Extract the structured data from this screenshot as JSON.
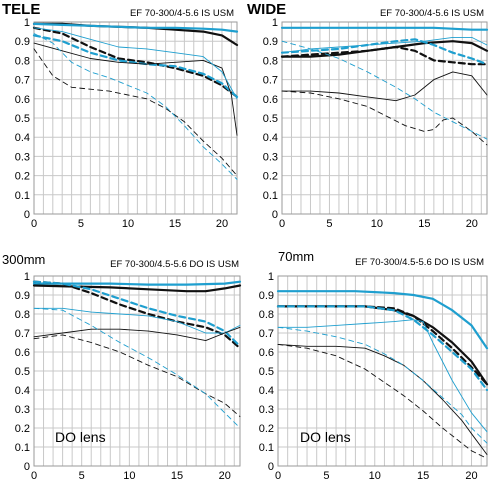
{
  "colors": {
    "dark": "#111111",
    "blue": "#1f9fcf",
    "grid": "#c8c8c8",
    "frame": "#9a9a9a"
  },
  "chart_data": [
    {
      "type": "line",
      "title": "TELE",
      "subtitle": "EF 70-300/4-5.6 IS USM",
      "note": "",
      "xlim": [
        0,
        21.6
      ],
      "ylim": [
        0,
        1
      ],
      "xticks": [
        "0",
        "5",
        "10",
        "15",
        "20"
      ],
      "yticks": [
        "0",
        "0.1",
        "0.2",
        "0.3",
        "0.4",
        "0.5",
        "0.6",
        "0.7",
        "0.8",
        "0.9",
        "1"
      ],
      "grid": true,
      "series": [
        {
          "color": "dark",
          "width": "thick",
          "dash": "solid",
          "x": [
            0,
            3,
            6,
            9,
            12,
            15,
            18,
            20,
            21.6
          ],
          "y": [
            0.99,
            0.99,
            0.98,
            0.975,
            0.97,
            0.96,
            0.95,
            0.93,
            0.88
          ]
        },
        {
          "color": "blue",
          "width": "thick",
          "dash": "solid",
          "x": [
            0,
            3,
            6,
            9,
            12,
            15,
            18,
            20,
            21.6
          ],
          "y": [
            0.99,
            0.985,
            0.98,
            0.975,
            0.97,
            0.97,
            0.965,
            0.96,
            0.95
          ]
        },
        {
          "color": "dark",
          "width": "thick",
          "dash": "dashed",
          "x": [
            0,
            3,
            6,
            9,
            12,
            15,
            18,
            20,
            21.6
          ],
          "y": [
            0.97,
            0.94,
            0.87,
            0.81,
            0.79,
            0.76,
            0.72,
            0.67,
            0.61
          ]
        },
        {
          "color": "blue",
          "width": "thick",
          "dash": "dashed",
          "x": [
            0,
            3,
            6,
            9,
            12,
            15,
            18,
            20,
            21.6
          ],
          "y": [
            0.93,
            0.9,
            0.84,
            0.8,
            0.78,
            0.77,
            0.73,
            0.68,
            0.61
          ]
        },
        {
          "color": "dark",
          "width": "thin",
          "dash": "solid",
          "x": [
            0,
            3,
            6,
            9,
            12,
            15,
            18,
            20,
            21,
            21.6
          ],
          "y": [
            0.89,
            0.85,
            0.81,
            0.79,
            0.78,
            0.79,
            0.8,
            0.76,
            0.62,
            0.41
          ]
        },
        {
          "color": "blue",
          "width": "thin",
          "dash": "solid",
          "x": [
            0,
            3,
            6,
            9,
            12,
            15,
            18,
            20,
            21.6
          ],
          "y": [
            0.97,
            0.95,
            0.91,
            0.87,
            0.86,
            0.84,
            0.82,
            0.74,
            0.6
          ]
        },
        {
          "color": "dark",
          "width": "thin",
          "dash": "dashed",
          "x": [
            0,
            2,
            4,
            6,
            8,
            10,
            12,
            14,
            16,
            18,
            20,
            21.6
          ],
          "y": [
            0.86,
            0.72,
            0.66,
            0.65,
            0.64,
            0.62,
            0.6,
            0.55,
            0.48,
            0.38,
            0.29,
            0.2
          ]
        },
        {
          "color": "blue",
          "width": "thin",
          "dash": "dashed",
          "x": [
            0,
            2,
            4,
            6,
            8,
            10,
            12,
            14,
            16,
            18,
            20,
            21.6
          ],
          "y": [
            0.94,
            0.89,
            0.79,
            0.74,
            0.71,
            0.67,
            0.63,
            0.56,
            0.46,
            0.35,
            0.26,
            0.18
          ]
        }
      ]
    },
    {
      "type": "line",
      "title": "WIDE",
      "subtitle": "EF 70-300/4-5.6 IS USM",
      "note": "",
      "xlim": [
        0,
        21.6
      ],
      "ylim": [
        0,
        1
      ],
      "xticks": [
        "0",
        "5",
        "10",
        "15",
        "20"
      ],
      "yticks": [
        "0",
        "0.1",
        "0.2",
        "0.3",
        "0.4",
        "0.5",
        "0.6",
        "0.7",
        "0.8",
        "0.9",
        "1"
      ],
      "grid": true,
      "series": [
        {
          "color": "blue",
          "width": "thick",
          "dash": "solid",
          "x": [
            0,
            4,
            8,
            12,
            16,
            20,
            21.6
          ],
          "y": [
            0.97,
            0.97,
            0.97,
            0.97,
            0.97,
            0.96,
            0.96
          ]
        },
        {
          "color": "dark",
          "width": "thick",
          "dash": "solid",
          "x": [
            0,
            3,
            6,
            9,
            12,
            15,
            18,
            20,
            21.6
          ],
          "y": [
            0.82,
            0.82,
            0.83,
            0.85,
            0.87,
            0.89,
            0.9,
            0.89,
            0.85
          ]
        },
        {
          "color": "dark",
          "width": "thick",
          "dash": "dashed",
          "x": [
            0,
            3,
            6,
            9,
            12,
            14,
            16,
            18,
            20,
            21.6
          ],
          "y": [
            0.82,
            0.83,
            0.84,
            0.85,
            0.87,
            0.85,
            0.8,
            0.79,
            0.78,
            0.78
          ]
        },
        {
          "color": "blue",
          "width": "thick",
          "dash": "dashed",
          "x": [
            0,
            3,
            6,
            9,
            12,
            14,
            16,
            18,
            20,
            21.6
          ],
          "y": [
            0.84,
            0.85,
            0.86,
            0.88,
            0.9,
            0.91,
            0.88,
            0.84,
            0.81,
            0.78
          ]
        },
        {
          "color": "blue",
          "width": "thin",
          "dash": "solid",
          "x": [
            0,
            3,
            6,
            9,
            12,
            15,
            18,
            20,
            21.6
          ],
          "y": [
            0.84,
            0.86,
            0.87,
            0.88,
            0.89,
            0.9,
            0.92,
            0.92,
            0.88
          ]
        },
        {
          "color": "dark",
          "width": "thin",
          "dash": "solid",
          "x": [
            0,
            3,
            6,
            9,
            12,
            14,
            16,
            18,
            20,
            21.6
          ],
          "y": [
            0.64,
            0.64,
            0.63,
            0.61,
            0.59,
            0.62,
            0.7,
            0.74,
            0.72,
            0.62
          ]
        },
        {
          "color": "dark",
          "width": "thin",
          "dash": "dashed",
          "x": [
            0,
            3,
            6,
            9,
            11,
            13,
            15,
            16,
            17,
            18,
            20,
            21.6
          ],
          "y": [
            0.64,
            0.63,
            0.6,
            0.56,
            0.51,
            0.46,
            0.43,
            0.44,
            0.49,
            0.5,
            0.43,
            0.36
          ]
        },
        {
          "color": "blue",
          "width": "thin",
          "dash": "dashed",
          "x": [
            0,
            3,
            6,
            9,
            12,
            14,
            16,
            18,
            20,
            21.6
          ],
          "y": [
            0.9,
            0.86,
            0.81,
            0.74,
            0.66,
            0.6,
            0.53,
            0.48,
            0.43,
            0.39
          ]
        }
      ]
    },
    {
      "type": "line",
      "title": "300mm",
      "subtitle": "EF 70-300/4.5-5.6 DO IS USM",
      "note": "DO lens",
      "xlim": [
        0,
        21.6
      ],
      "ylim": [
        0,
        1
      ],
      "xticks": [
        "0",
        "5",
        "10",
        "15",
        "20"
      ],
      "yticks": [
        "0",
        "0.1",
        "0.2",
        "0.3",
        "0.4",
        "0.5",
        "0.6",
        "0.7",
        "0.8",
        "0.9",
        "1"
      ],
      "grid": true,
      "series": [
        {
          "color": "blue",
          "width": "thick",
          "dash": "solid",
          "x": [
            0,
            4,
            8,
            12,
            16,
            20,
            21.6
          ],
          "y": [
            0.96,
            0.96,
            0.96,
            0.955,
            0.955,
            0.96,
            0.97
          ]
        },
        {
          "color": "dark",
          "width": "thick",
          "dash": "solid",
          "x": [
            0,
            4,
            8,
            12,
            16,
            18,
            20,
            21.6
          ],
          "y": [
            0.95,
            0.945,
            0.94,
            0.93,
            0.92,
            0.92,
            0.935,
            0.95
          ]
        },
        {
          "color": "dark",
          "width": "thick",
          "dash": "dashed",
          "x": [
            0,
            3,
            6,
            9,
            12,
            15,
            18,
            20,
            21.6
          ],
          "y": [
            0.97,
            0.96,
            0.91,
            0.85,
            0.8,
            0.76,
            0.73,
            0.69,
            0.62
          ]
        },
        {
          "color": "blue",
          "width": "thick",
          "dash": "dashed",
          "x": [
            0,
            3,
            6,
            9,
            12,
            15,
            18,
            20,
            21.6
          ],
          "y": [
            0.97,
            0.96,
            0.93,
            0.88,
            0.83,
            0.79,
            0.76,
            0.71,
            0.63
          ]
        },
        {
          "color": "blue",
          "width": "thin",
          "dash": "solid",
          "x": [
            0,
            3,
            6,
            9,
            12,
            15,
            18,
            20,
            21.6
          ],
          "y": [
            0.83,
            0.83,
            0.81,
            0.8,
            0.79,
            0.76,
            0.7,
            0.7,
            0.74
          ]
        },
        {
          "color": "dark",
          "width": "thin",
          "dash": "solid",
          "x": [
            0,
            3,
            6,
            9,
            12,
            15,
            18,
            20,
            21.6
          ],
          "y": [
            0.68,
            0.7,
            0.72,
            0.72,
            0.71,
            0.69,
            0.66,
            0.7,
            0.73
          ]
        },
        {
          "color": "dark",
          "width": "thin",
          "dash": "dashed",
          "x": [
            0,
            3,
            6,
            9,
            12,
            15,
            18,
            20,
            21.6
          ],
          "y": [
            0.67,
            0.69,
            0.65,
            0.6,
            0.53,
            0.47,
            0.38,
            0.33,
            0.26
          ]
        },
        {
          "color": "blue",
          "width": "thin",
          "dash": "dashed",
          "x": [
            0,
            3,
            6,
            9,
            12,
            15,
            18,
            20,
            21.6
          ],
          "y": [
            0.83,
            0.82,
            0.74,
            0.65,
            0.57,
            0.48,
            0.38,
            0.28,
            0.2
          ]
        }
      ]
    },
    {
      "type": "line",
      "title": "70mm",
      "subtitle": "EF 70-300/4.5-5.6 DO IS USM",
      "note": "DO lens",
      "xlim": [
        0,
        21.6
      ],
      "ylim": [
        0,
        1
      ],
      "xticks": [
        "0",
        "5",
        "10",
        "15",
        "20"
      ],
      "yticks": [
        "0",
        "0.1",
        "0.2",
        "0.3",
        "0.4",
        "0.5",
        "0.6",
        "0.7",
        "0.8",
        "0.9",
        "1"
      ],
      "grid": true,
      "series": [
        {
          "color": "blue",
          "width": "thick",
          "dash": "solid",
          "x": [
            0,
            4,
            8,
            12,
            14,
            16,
            18,
            20,
            21.6
          ],
          "y": [
            0.92,
            0.92,
            0.92,
            0.91,
            0.9,
            0.88,
            0.82,
            0.74,
            0.62
          ]
        },
        {
          "color": "dark",
          "width": "thick",
          "dash": "solid",
          "x": [
            0,
            3,
            6,
            9,
            12,
            14,
            16,
            18,
            20,
            21.6
          ],
          "y": [
            0.84,
            0.84,
            0.84,
            0.84,
            0.82,
            0.79,
            0.73,
            0.65,
            0.55,
            0.43
          ]
        },
        {
          "color": "dark",
          "width": "thick",
          "dash": "dashed",
          "x": [
            0,
            3,
            6,
            9,
            12,
            14,
            16,
            18,
            20,
            21.6
          ],
          "y": [
            0.84,
            0.84,
            0.84,
            0.84,
            0.83,
            0.79,
            0.71,
            0.62,
            0.52,
            0.43
          ]
        },
        {
          "color": "blue",
          "width": "thick",
          "dash": "dashed",
          "x": [
            0,
            3,
            6,
            9,
            12,
            14,
            16,
            18,
            20,
            21.6
          ],
          "y": [
            0.84,
            0.84,
            0.84,
            0.84,
            0.82,
            0.77,
            0.69,
            0.6,
            0.51,
            0.4
          ]
        },
        {
          "color": "blue",
          "width": "thin",
          "dash": "solid",
          "x": [
            0,
            3,
            6,
            9,
            12,
            14,
            15,
            16,
            18,
            20,
            21.6
          ],
          "y": [
            0.73,
            0.73,
            0.74,
            0.75,
            0.76,
            0.77,
            0.76,
            0.65,
            0.45,
            0.28,
            0.18
          ]
        },
        {
          "color": "dark",
          "width": "thin",
          "dash": "solid",
          "x": [
            0,
            3,
            6,
            9,
            11,
            13,
            15,
            17,
            19,
            20,
            21.6
          ],
          "y": [
            0.64,
            0.63,
            0.63,
            0.62,
            0.58,
            0.53,
            0.45,
            0.35,
            0.24,
            0.17,
            0.06
          ]
        },
        {
          "color": "dark",
          "width": "thin",
          "dash": "dashed",
          "x": [
            0,
            3,
            6,
            9,
            11,
            13,
            15,
            17,
            19,
            20,
            21.6
          ],
          "y": [
            0.64,
            0.62,
            0.58,
            0.51,
            0.44,
            0.37,
            0.29,
            0.2,
            0.12,
            0.08,
            0.04
          ]
        },
        {
          "color": "blue",
          "width": "thin",
          "dash": "dashed",
          "x": [
            0,
            3,
            6,
            9,
            11,
            13,
            15,
            17,
            19,
            20,
            21.6
          ],
          "y": [
            0.73,
            0.71,
            0.68,
            0.64,
            0.59,
            0.53,
            0.45,
            0.36,
            0.27,
            0.2,
            0.12
          ]
        }
      ]
    }
  ]
}
